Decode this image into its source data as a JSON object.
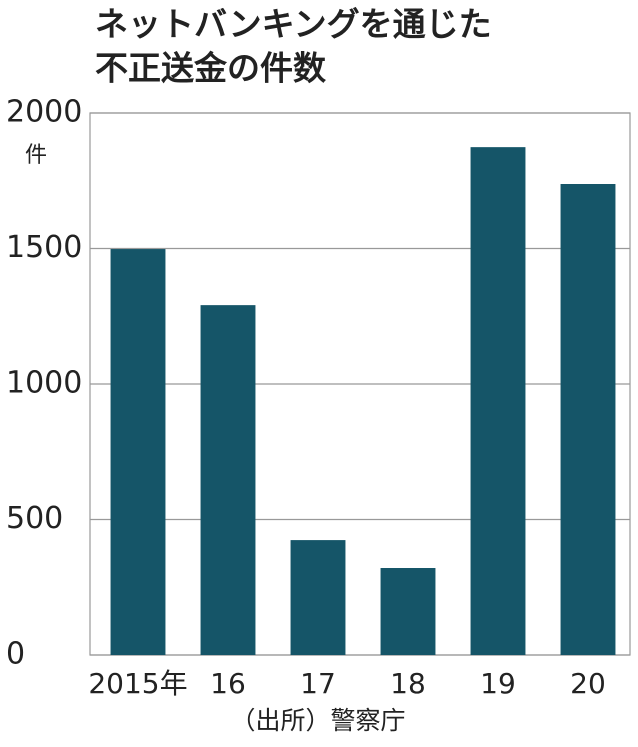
{
  "chart_data": {
    "type": "bar",
    "title": [
      "ネットバンキングを通じた",
      "不正送金の件数"
    ],
    "unit": "件",
    "source": "（出所）警察庁",
    "categories": [
      "2015年",
      "16",
      "17",
      "18",
      "19",
      "20"
    ],
    "values": [
      1498,
      1291,
      424,
      321,
      1874,
      1738
    ],
    "color": "#155568",
    "ylim": [
      0,
      2000
    ],
    "yticks": [
      0,
      500,
      1000,
      1500,
      2000
    ],
    "grid": true
  }
}
